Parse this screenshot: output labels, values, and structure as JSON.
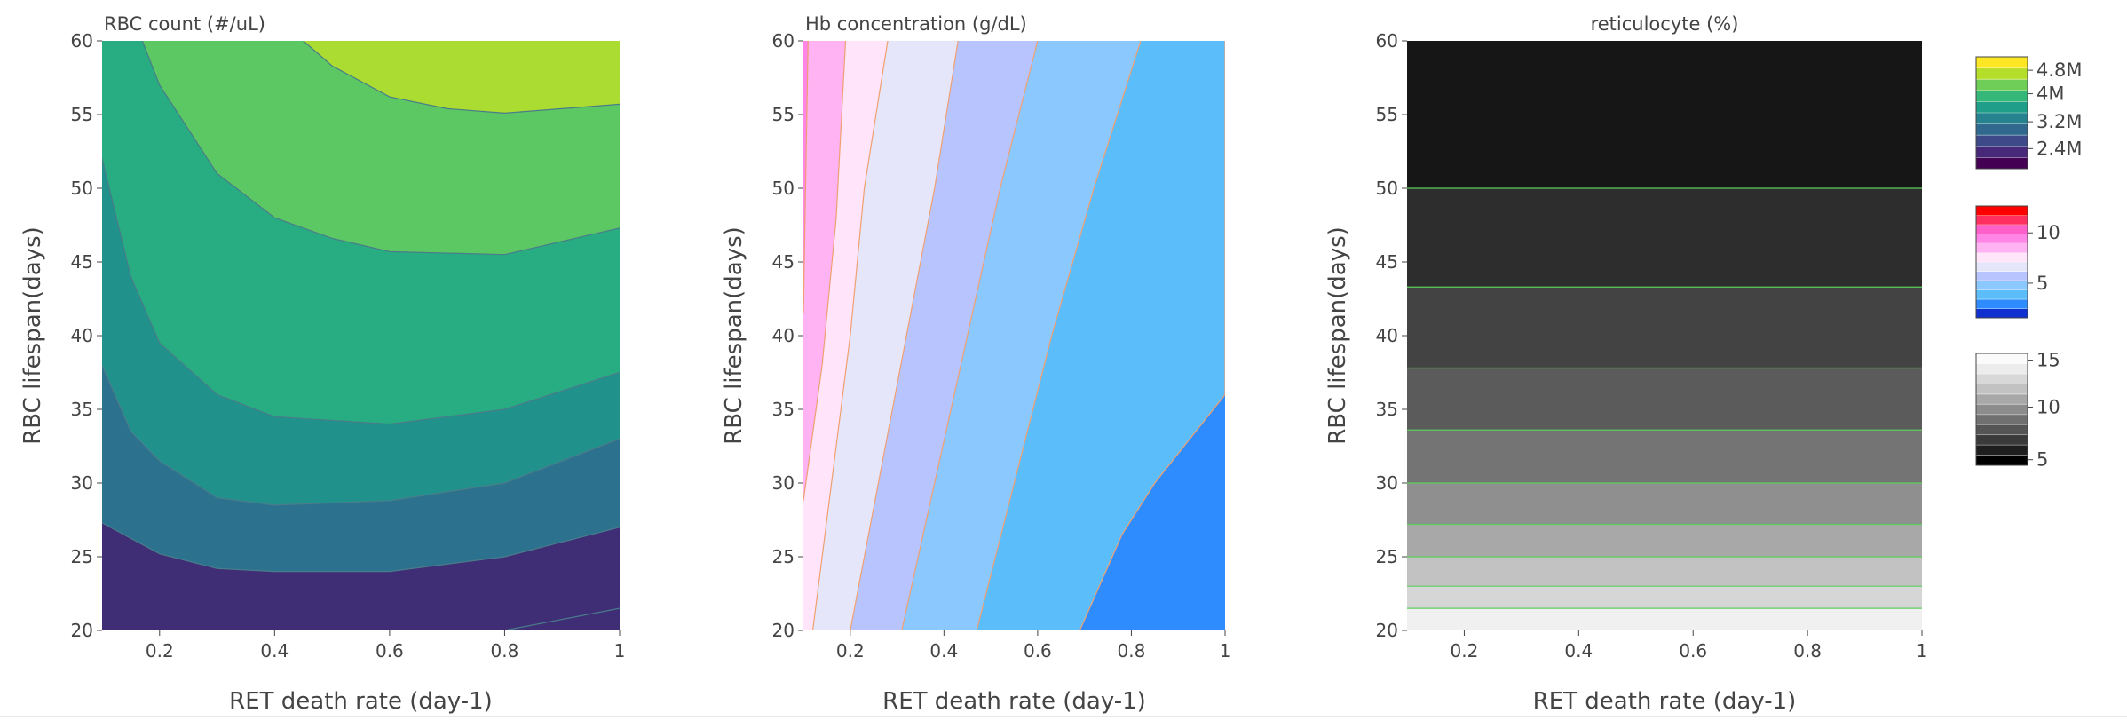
{
  "chart_data": [
    {
      "type": "contour",
      "title": "RBC count (#/uL)",
      "xlabel": "RET death rate (day-1)",
      "ylabel": "RBC lifespan(days)",
      "xlim": [
        0.1,
        1
      ],
      "ylim": [
        20,
        60
      ],
      "x_ticks": [
        "0.2",
        "0.4",
        "0.6",
        "0.8",
        "1"
      ],
      "y_ticks": [
        "20",
        "25",
        "30",
        "35",
        "40",
        "45",
        "50",
        "55",
        "60"
      ],
      "x_tick_values": [
        0.2,
        0.4,
        0.6,
        0.8,
        1
      ],
      "y_tick_values": [
        20,
        25,
        30,
        35,
        40,
        45,
        50,
        55,
        60
      ],
      "level_colors": [
        "#3f2d76",
        "#3b528b",
        "#2c728e",
        "#21918c",
        "#27ad81",
        "#5cc863",
        "#aadc32"
      ],
      "contour_lines": [
        {
          "points": [
            [
              0.8,
              20
            ],
            [
              1,
              21.5
            ]
          ]
        },
        {
          "points": [
            [
              0.1,
              27.3
            ],
            [
              0.2,
              25.2
            ],
            [
              0.3,
              24.2
            ],
            [
              0.4,
              24.0
            ],
            [
              0.6,
              24.0
            ],
            [
              0.8,
              25.0
            ],
            [
              1,
              27.0
            ]
          ]
        },
        {
          "points": [
            [
              0.1,
              38.0
            ],
            [
              0.15,
              33.5
            ],
            [
              0.2,
              31.5
            ],
            [
              0.3,
              29.0
            ],
            [
              0.4,
              28.5
            ],
            [
              0.6,
              28.8
            ],
            [
              0.8,
              30.0
            ],
            [
              1,
              33.0
            ]
          ]
        },
        {
          "points": [
            [
              0.1,
              52.0
            ],
            [
              0.15,
              44.0
            ],
            [
              0.2,
              39.5
            ],
            [
              0.3,
              36.0
            ],
            [
              0.4,
              34.5
            ],
            [
              0.6,
              34.0
            ],
            [
              0.8,
              35.0
            ],
            [
              1,
              37.5
            ]
          ]
        },
        {
          "points": [
            [
              0.17,
              60
            ],
            [
              0.2,
              57.0
            ],
            [
              0.3,
              51.0
            ],
            [
              0.4,
              48.0
            ],
            [
              0.5,
              46.6
            ],
            [
              0.6,
              45.7
            ],
            [
              0.8,
              45.5
            ],
            [
              1,
              47.3
            ]
          ]
        },
        {
          "points": [
            [
              0.45,
              60
            ],
            [
              0.5,
              58.3
            ],
            [
              0.6,
              56.2
            ],
            [
              0.7,
              55.4
            ],
            [
              0.8,
              55.1
            ],
            [
              1,
              55.7
            ]
          ]
        }
      ],
      "line_color": "#4a7c8a"
    },
    {
      "type": "contour",
      "title": "Hb concentration (g/dL)",
      "xlabel": "RET death rate (day-1)",
      "ylabel": "RBC lifespan(days)",
      "xlim": [
        0.1,
        1
      ],
      "ylim": [
        20,
        60
      ],
      "x_ticks": [
        "0.2",
        "0.4",
        "0.6",
        "0.8",
        "1"
      ],
      "y_ticks": [
        "20",
        "25",
        "30",
        "35",
        "40",
        "45",
        "50",
        "55",
        "60"
      ],
      "x_tick_values": [
        0.2,
        0.4,
        0.6,
        0.8,
        1
      ],
      "y_tick_values": [
        20,
        25,
        30,
        35,
        40,
        45,
        50,
        55,
        60
      ],
      "level_colors": [
        "#ff85e6",
        "#ffb3f2",
        "#ffe4fa",
        "#e6e6fa",
        "#b8c4fe",
        "#8ac8fd",
        "#5bbefb",
        "#2f8cff"
      ],
      "contour_lines": [
        {
          "points": [
            [
              0.1,
              41.5
            ],
            [
              0.11,
              60
            ]
          ]
        },
        {
          "points": [
            [
              0.1,
              28.8
            ],
            [
              0.14,
              38.0
            ],
            [
              0.17,
              48.0
            ],
            [
              0.19,
              60
            ]
          ]
        },
        {
          "points": [
            [
              0.12,
              20
            ],
            [
              0.16,
              30.0
            ],
            [
              0.2,
              40.0
            ],
            [
              0.23,
              50.0
            ],
            [
              0.28,
              60
            ]
          ]
        },
        {
          "points": [
            [
              0.2,
              20
            ],
            [
              0.26,
              30.0
            ],
            [
              0.32,
              40.0
            ],
            [
              0.38,
              50.0
            ],
            [
              0.43,
              60
            ]
          ]
        },
        {
          "points": [
            [
              0.31,
              20
            ],
            [
              0.38,
              30.0
            ],
            [
              0.45,
              40.0
            ],
            [
              0.52,
              50.0
            ],
            [
              0.6,
              60
            ]
          ]
        },
        {
          "points": [
            [
              0.47,
              20
            ],
            [
              0.55,
              30.0
            ],
            [
              0.63,
              40.0
            ],
            [
              0.72,
              50.0
            ],
            [
              0.82,
              60
            ]
          ]
        },
        {
          "points": [
            [
              0.69,
              20
            ],
            [
              0.78,
              26.5
            ],
            [
              0.85,
              30.0
            ],
            [
              0.95,
              34.0
            ],
            [
              1,
              36.0
            ],
            [
              1,
              60
            ]
          ]
        }
      ],
      "line_color": "#f0a070"
    },
    {
      "type": "contour",
      "title": "reticulocyte (%)",
      "xlabel": "RET death rate (day-1)",
      "ylabel": "RBC lifespan(days)",
      "xlim": [
        0.1,
        1
      ],
      "ylim": [
        20,
        60
      ],
      "x_ticks": [
        "0.2",
        "0.4",
        "0.6",
        "0.8",
        "1"
      ],
      "y_ticks": [
        "20",
        "25",
        "30",
        "35",
        "40",
        "45",
        "50",
        "55",
        "60"
      ],
      "x_tick_values": [
        0.2,
        0.4,
        0.6,
        0.8,
        1
      ],
      "y_tick_values": [
        20,
        25,
        30,
        35,
        40,
        45,
        50,
        55,
        60
      ],
      "bands": [
        {
          "y0": 20,
          "y1": 21.5,
          "color": "#f0f0f0"
        },
        {
          "y0": 21.5,
          "y1": 23.0,
          "color": "#d6d6d6"
        },
        {
          "y0": 23.0,
          "y1": 25.0,
          "color": "#c2c2c2"
        },
        {
          "y0": 25.0,
          "y1": 27.2,
          "color": "#a8a8a8"
        },
        {
          "y0": 27.2,
          "y1": 30.0,
          "color": "#8f8f8f"
        },
        {
          "y0": 30.0,
          "y1": 33.6,
          "color": "#747474"
        },
        {
          "y0": 33.6,
          "y1": 37.8,
          "color": "#5b5b5b"
        },
        {
          "y0": 37.8,
          "y1": 43.3,
          "color": "#434343"
        },
        {
          "y0": 43.3,
          "y1": 50.0,
          "color": "#2d2d2d"
        },
        {
          "y0": 50.0,
          "y1": 60.0,
          "color": "#161616"
        }
      ],
      "line_color": "#5ad05a"
    }
  ],
  "colorbars": [
    {
      "name": "RBC count",
      "colors": [
        "#440154",
        "#482878",
        "#3e4989",
        "#31688e",
        "#26828e",
        "#1f9e89",
        "#35b779",
        "#6ece58",
        "#b5de2b",
        "#fde725"
      ],
      "ticks": [
        {
          "label": "4.8M",
          "frac": 0.88
        },
        {
          "label": "4M",
          "frac": 0.67
        },
        {
          "label": "3.2M",
          "frac": 0.42
        },
        {
          "label": "2.4M",
          "frac": 0.18
        }
      ]
    },
    {
      "name": "Hb concentration",
      "colors": [
        "#1030d0",
        "#2f8cff",
        "#5bbefb",
        "#8ac8fd",
        "#b8c4fe",
        "#e6e6fa",
        "#ffe4fa",
        "#ffb3f2",
        "#ff85e6",
        "#ff5fc8",
        "#ff3060",
        "#ff0000"
      ],
      "ticks": [
        {
          "label": "10",
          "frac": 0.76
        },
        {
          "label": "5",
          "frac": 0.31
        }
      ]
    },
    {
      "name": "reticulocyte",
      "colors": [
        "#000000",
        "#1e1e1e",
        "#3a3a3a",
        "#555555",
        "#707070",
        "#8c8c8c",
        "#a8a8a8",
        "#c2c2c2",
        "#d8d8d8",
        "#ececec",
        "#fafafa"
      ],
      "ticks": [
        {
          "label": "15",
          "frac": 0.94
        },
        {
          "label": "10",
          "frac": 0.52
        },
        {
          "label": "5",
          "frac": 0.05
        }
      ]
    }
  ]
}
